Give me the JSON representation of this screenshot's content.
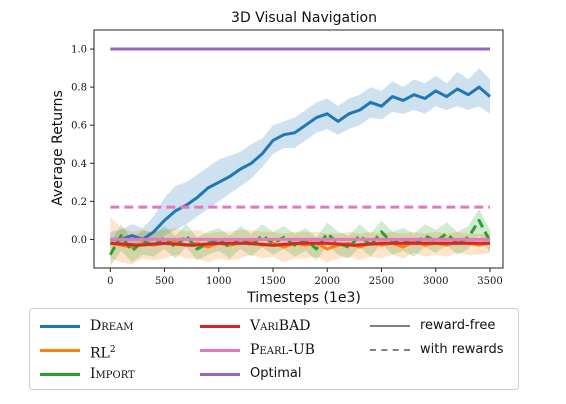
{
  "chart_data": {
    "type": "line",
    "title": "3D Visual Navigation",
    "xlabel": "Timesteps (1e3)",
    "ylabel": "Average Returns",
    "xlim": [
      -150,
      3620
    ],
    "ylim": [
      -0.15,
      1.1
    ],
    "xticks": [
      "0",
      "500",
      "1000",
      "1500",
      "2000",
      "2500",
      "3000",
      "3500"
    ],
    "xtick_values": [
      0,
      500,
      1000,
      1500,
      2000,
      2500,
      3000,
      3500
    ],
    "yticks": [
      "0.0",
      "0.2",
      "0.4",
      "0.6",
      "0.8",
      "1.0"
    ],
    "ytick_values": [
      0.0,
      0.2,
      0.4,
      0.6,
      0.8,
      1.0
    ],
    "grid": false,
    "legend_position": "below",
    "series": [
      {
        "name": "Dream",
        "color": "#1f77b4",
        "style": "solid",
        "x": [
          0,
          100,
          200,
          300,
          400,
          500,
          600,
          700,
          800,
          900,
          1000,
          1100,
          1200,
          1300,
          1400,
          1500,
          1600,
          1700,
          1800,
          1900,
          2000,
          2100,
          2200,
          2300,
          2400,
          2500,
          2600,
          2700,
          2800,
          2900,
          3000,
          3100,
          3200,
          3300,
          3400,
          3500
        ],
        "y": [
          0.0,
          0.0,
          0.02,
          0.0,
          0.04,
          0.1,
          0.15,
          0.18,
          0.22,
          0.27,
          0.3,
          0.33,
          0.37,
          0.4,
          0.45,
          0.52,
          0.55,
          0.56,
          0.6,
          0.64,
          0.66,
          0.62,
          0.66,
          0.68,
          0.72,
          0.7,
          0.75,
          0.73,
          0.76,
          0.74,
          0.78,
          0.75,
          0.79,
          0.76,
          0.8,
          0.75
        ],
        "lower": [
          -0.02,
          -0.03,
          -0.02,
          -0.03,
          -0.01,
          0.02,
          0.05,
          0.08,
          0.12,
          0.16,
          0.2,
          0.24,
          0.28,
          0.32,
          0.38,
          0.45,
          0.48,
          0.48,
          0.52,
          0.56,
          0.58,
          0.55,
          0.58,
          0.6,
          0.64,
          0.63,
          0.67,
          0.66,
          0.68,
          0.66,
          0.7,
          0.68,
          0.7,
          0.68,
          0.7,
          0.66
        ],
        "upper": [
          0.04,
          0.05,
          0.08,
          0.06,
          0.12,
          0.22,
          0.28,
          0.3,
          0.34,
          0.38,
          0.42,
          0.44,
          0.46,
          0.5,
          0.53,
          0.6,
          0.62,
          0.64,
          0.68,
          0.72,
          0.74,
          0.7,
          0.74,
          0.76,
          0.8,
          0.78,
          0.83,
          0.8,
          0.84,
          0.82,
          0.86,
          0.82,
          0.88,
          0.84,
          0.9,
          0.84
        ]
      },
      {
        "name": "RL²",
        "color": "#ff7f0e",
        "style": "solid",
        "x": [
          0,
          100,
          200,
          300,
          400,
          500,
          600,
          700,
          800,
          900,
          1000,
          1100,
          1200,
          1300,
          1400,
          1500,
          1600,
          1700,
          1800,
          1900,
          2000,
          2100,
          2200,
          2300,
          2400,
          2500,
          2600,
          2700,
          2800,
          2900,
          3000,
          3100,
          3200,
          3300,
          3400,
          3500
        ],
        "y": [
          -0.02,
          -0.03,
          -0.04,
          -0.02,
          -0.03,
          -0.02,
          -0.01,
          -0.03,
          -0.02,
          -0.04,
          -0.02,
          -0.03,
          -0.02,
          -0.01,
          -0.03,
          -0.02,
          -0.04,
          -0.02,
          -0.03,
          -0.02,
          -0.05,
          -0.03,
          -0.02,
          -0.04,
          -0.02,
          -0.03,
          -0.02,
          -0.04,
          -0.01,
          -0.03,
          -0.02,
          -0.03,
          -0.01,
          -0.02,
          -0.03,
          -0.02
        ],
        "lower": [
          -0.1,
          -0.12,
          -0.13,
          -0.1,
          -0.11,
          -0.1,
          -0.08,
          -0.1,
          -0.1,
          -0.12,
          -0.1,
          -0.11,
          -0.1,
          -0.08,
          -0.1,
          -0.09,
          -0.12,
          -0.1,
          -0.1,
          -0.09,
          -0.12,
          -0.1,
          -0.09,
          -0.11,
          -0.09,
          -0.1,
          -0.08,
          -0.1,
          -0.07,
          -0.09,
          -0.08,
          -0.09,
          -0.07,
          -0.08,
          -0.08,
          -0.07
        ],
        "upper": [
          0.12,
          0.06,
          0.04,
          0.05,
          0.04,
          0.05,
          0.06,
          0.04,
          0.05,
          0.03,
          0.04,
          0.04,
          0.05,
          0.05,
          0.04,
          0.04,
          0.03,
          0.04,
          0.04,
          0.04,
          0.03,
          0.03,
          0.04,
          0.03,
          0.04,
          0.03,
          0.04,
          0.03,
          0.04,
          0.03,
          0.04,
          0.03,
          0.04,
          0.03,
          0.03,
          0.03
        ]
      },
      {
        "name": "Import",
        "color": "#2ca02c",
        "style": "dashed",
        "x": [
          0,
          100,
          200,
          300,
          400,
          500,
          600,
          700,
          800,
          900,
          1000,
          1100,
          1200,
          1300,
          1400,
          1500,
          1600,
          1700,
          1800,
          1900,
          2000,
          2100,
          2200,
          2300,
          2400,
          2500,
          2600,
          2700,
          2800,
          2900,
          3000,
          3100,
          3200,
          3300,
          3400,
          3500
        ],
        "y": [
          -0.08,
          0.02,
          -0.06,
          -0.01,
          -0.03,
          0.01,
          -0.04,
          0.02,
          -0.05,
          -0.02,
          0.0,
          -0.04,
          0.01,
          -0.03,
          0.02,
          -0.02,
          0.01,
          -0.03,
          0.0,
          -0.05,
          0.03,
          -0.02,
          -0.04,
          0.02,
          -0.03,
          0.04,
          -0.02,
          0.0,
          -0.03,
          0.02,
          -0.01,
          0.03,
          -0.02,
          0.01,
          0.1,
          -0.01
        ],
        "lower": [
          -0.14,
          -0.06,
          -0.12,
          -0.08,
          -0.09,
          -0.05,
          -0.1,
          -0.04,
          -0.11,
          -0.08,
          -0.06,
          -0.1,
          -0.05,
          -0.09,
          -0.04,
          -0.08,
          -0.05,
          -0.09,
          -0.06,
          -0.11,
          -0.03,
          -0.08,
          -0.1,
          -0.04,
          -0.09,
          -0.02,
          -0.08,
          -0.06,
          -0.09,
          -0.04,
          -0.07,
          -0.03,
          -0.08,
          -0.05,
          0.02,
          -0.07
        ],
        "upper": [
          -0.02,
          0.08,
          0.0,
          0.05,
          0.03,
          0.07,
          0.02,
          0.08,
          0.01,
          0.04,
          0.06,
          0.02,
          0.07,
          0.03,
          0.08,
          0.04,
          0.07,
          0.03,
          0.06,
          0.01,
          0.09,
          0.04,
          0.02,
          0.08,
          0.03,
          0.1,
          0.04,
          0.06,
          0.03,
          0.08,
          0.05,
          0.09,
          0.04,
          0.07,
          0.16,
          0.05
        ]
      },
      {
        "name": "VariBAD",
        "color": "#d62728",
        "style": "solid",
        "x": [
          0,
          250,
          500,
          750,
          1000,
          1250,
          1500,
          1750,
          2000,
          2250,
          2500,
          2750,
          3000,
          3250,
          3500
        ],
        "y": [
          -0.02,
          -0.03,
          -0.02,
          -0.03,
          -0.02,
          -0.02,
          -0.03,
          -0.02,
          -0.02,
          -0.03,
          -0.02,
          -0.02,
          -0.02,
          -0.02,
          -0.02
        ],
        "lower": [
          -0.03,
          -0.04,
          -0.03,
          -0.04,
          -0.03,
          -0.03,
          -0.04,
          -0.03,
          -0.03,
          -0.04,
          -0.03,
          -0.03,
          -0.03,
          -0.03,
          -0.03
        ],
        "upper": [
          -0.01,
          -0.02,
          -0.01,
          -0.02,
          -0.01,
          -0.01,
          -0.02,
          -0.01,
          -0.01,
          -0.02,
          -0.01,
          -0.01,
          -0.01,
          -0.01,
          -0.01
        ]
      },
      {
        "name": "Pearl-UB",
        "color": "#e377c2",
        "style": "dashed",
        "x": [
          0,
          3500
        ],
        "y": [
          0.17,
          0.17
        ]
      },
      {
        "name": "Pearl-UB",
        "color": "#e377c2",
        "style": "solid",
        "x": [
          0,
          3500
        ],
        "y": [
          0.0,
          0.0
        ]
      },
      {
        "name": "Optimal",
        "color": "#9467bd",
        "style": "solid",
        "x": [
          0,
          3500
        ],
        "y": [
          1.0,
          1.0
        ]
      }
    ]
  },
  "legend": {
    "items": [
      {
        "label": "Dream",
        "color": "#1f77b4",
        "style": "solid"
      },
      {
        "label": "RL",
        "sup": "2",
        "color": "#ff7f0e",
        "style": "solid"
      },
      {
        "label": "Import",
        "color": "#2ca02c",
        "style": "solid"
      },
      {
        "label": "VariBAD",
        "color": "#d62728",
        "style": "solid"
      },
      {
        "label": "Pearl-UB",
        "color": "#e377c2",
        "style": "solid"
      },
      {
        "label": "Optimal",
        "color": "#9467bd",
        "style": "solid"
      },
      {
        "label": "reward-free",
        "color": "#808080",
        "style": "solid"
      },
      {
        "label": "with rewards",
        "color": "#808080",
        "style": "dashed"
      }
    ]
  }
}
